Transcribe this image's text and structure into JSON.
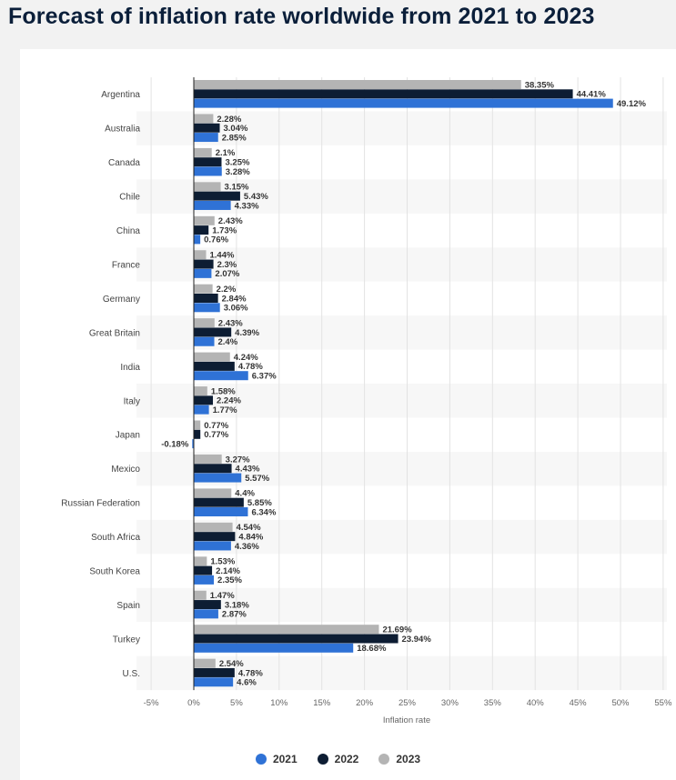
{
  "page": {
    "title": "Forecast of inflation rate worldwide from 2021 to 2023"
  },
  "chart_data": {
    "type": "bar",
    "orientation": "horizontal",
    "title": "Forecast of inflation rate worldwide from 2021 to 2023",
    "xlabel": "Inflation rate",
    "ylabel": "",
    "xlim": [
      -5,
      55
    ],
    "xticks": [
      -5,
      0,
      5,
      10,
      15,
      20,
      25,
      30,
      35,
      40,
      45,
      50,
      55
    ],
    "xtick_labels": [
      "-5%",
      "0%",
      "5%",
      "10%",
      "15%",
      "20%",
      "25%",
      "30%",
      "35%",
      "40%",
      "45%",
      "50%",
      "55%"
    ],
    "grid": true,
    "legend_position": "bottom",
    "categories": [
      "Argentina",
      "Australia",
      "Canada",
      "Chile",
      "China",
      "France",
      "Germany",
      "Great Britain",
      "India",
      "Italy",
      "Japan",
      "Mexico",
      "Russian Federation",
      "South Africa",
      "South Korea",
      "Spain",
      "Turkey",
      "U.S."
    ],
    "series": [
      {
        "name": "2023",
        "color": "#b4b4b4",
        "values": [
          38.35,
          2.28,
          2.1,
          3.15,
          2.43,
          1.44,
          2.2,
          2.43,
          4.24,
          1.58,
          0.77,
          3.27,
          4.4,
          4.54,
          1.53,
          1.47,
          21.69,
          2.54
        ],
        "labels": [
          "38.35%",
          "2.28%",
          "2.1%",
          "3.15%",
          "2.43%",
          "1.44%",
          "2.2%",
          "2.43%",
          "4.24%",
          "1.58%",
          "0.77%",
          "3.27%",
          "4.4%",
          "4.54%",
          "1.53%",
          "1.47%",
          "21.69%",
          "2.54%"
        ]
      },
      {
        "name": "2022",
        "color": "#0d1d33",
        "values": [
          44.41,
          3.04,
          3.25,
          5.43,
          1.73,
          2.3,
          2.84,
          4.39,
          4.78,
          2.24,
          0.77,
          4.43,
          5.85,
          4.84,
          2.14,
          3.18,
          23.94,
          4.78
        ],
        "labels": [
          "44.41%",
          "3.04%",
          "3.25%",
          "5.43%",
          "1.73%",
          "2.3%",
          "2.84%",
          "4.39%",
          "4.78%",
          "2.24%",
          "0.77%",
          "4.43%",
          "5.85%",
          "4.84%",
          "2.14%",
          "3.18%",
          "23.94%",
          "4.78%"
        ]
      },
      {
        "name": "2021",
        "color": "#2f72d6",
        "values": [
          49.12,
          2.85,
          3.28,
          4.33,
          0.76,
          2.07,
          3.06,
          2.4,
          6.37,
          1.77,
          -0.18,
          5.57,
          6.34,
          4.36,
          2.35,
          2.87,
          18.68,
          4.6
        ],
        "labels": [
          "49.12%",
          "2.85%",
          "3.28%",
          "4.33%",
          "0.76%",
          "2.07%",
          "3.06%",
          "2.4%",
          "6.37%",
          "1.77%",
          "-0.18%",
          "5.57%",
          "6.34%",
          "4.36%",
          "2.35%",
          "2.87%",
          "18.68%",
          "4.6%"
        ]
      }
    ],
    "legend": [
      {
        "name": "2021",
        "color": "#2f72d6"
      },
      {
        "name": "2022",
        "color": "#0d1d33"
      },
      {
        "name": "2023",
        "color": "#b4b4b4"
      }
    ]
  }
}
